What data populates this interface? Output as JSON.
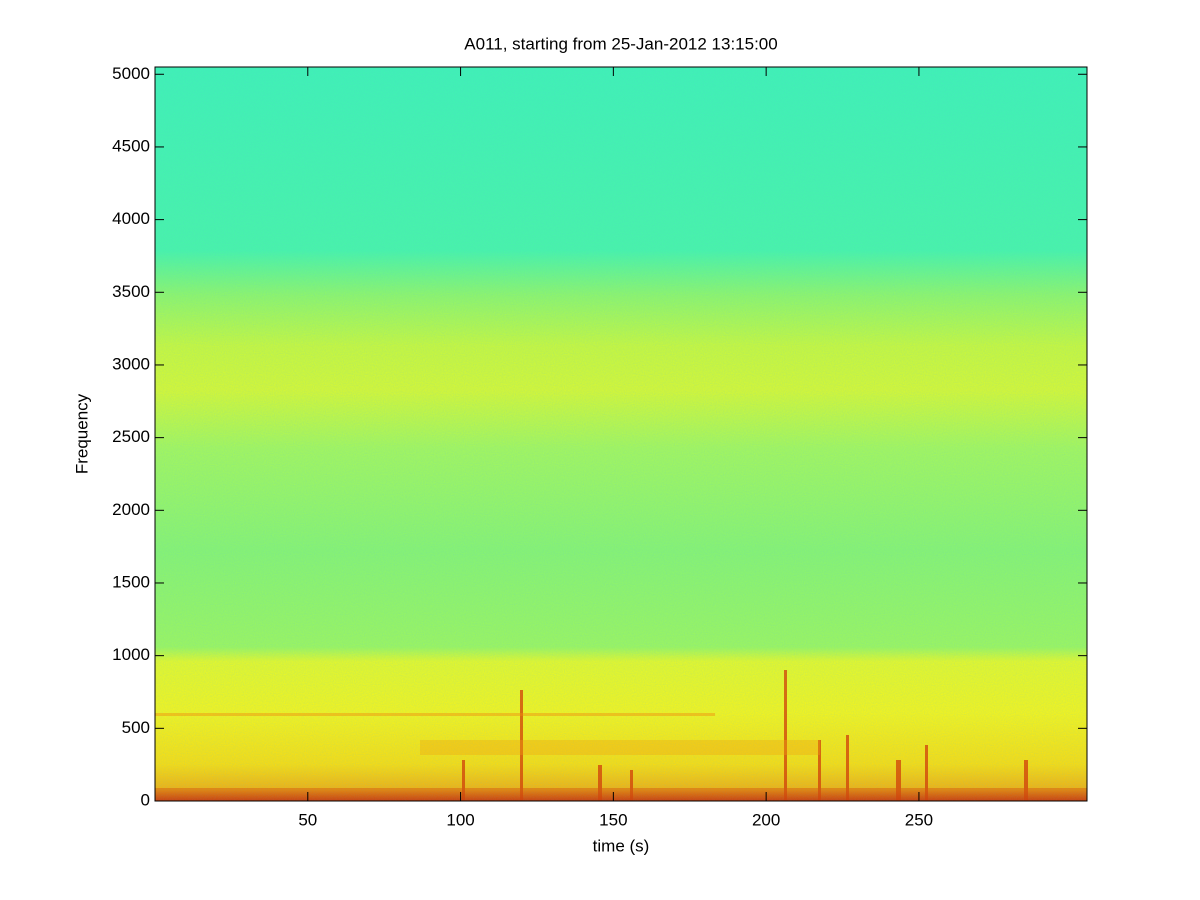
{
  "chart_data": {
    "type": "spectrogram",
    "title": "A011, starting from 25-Jan-2012 13:15:00",
    "xlabel": "time (s)",
    "ylabel": "Frequency",
    "xlim": [
      0,
      305
    ],
    "xticks": [
      50,
      100,
      150,
      200,
      250
    ],
    "ylim": [
      0,
      5050
    ],
    "yticks": [
      0,
      500,
      1000,
      1500,
      2000,
      2500,
      3000,
      3500,
      4000,
      4500,
      5000
    ]
  }
}
